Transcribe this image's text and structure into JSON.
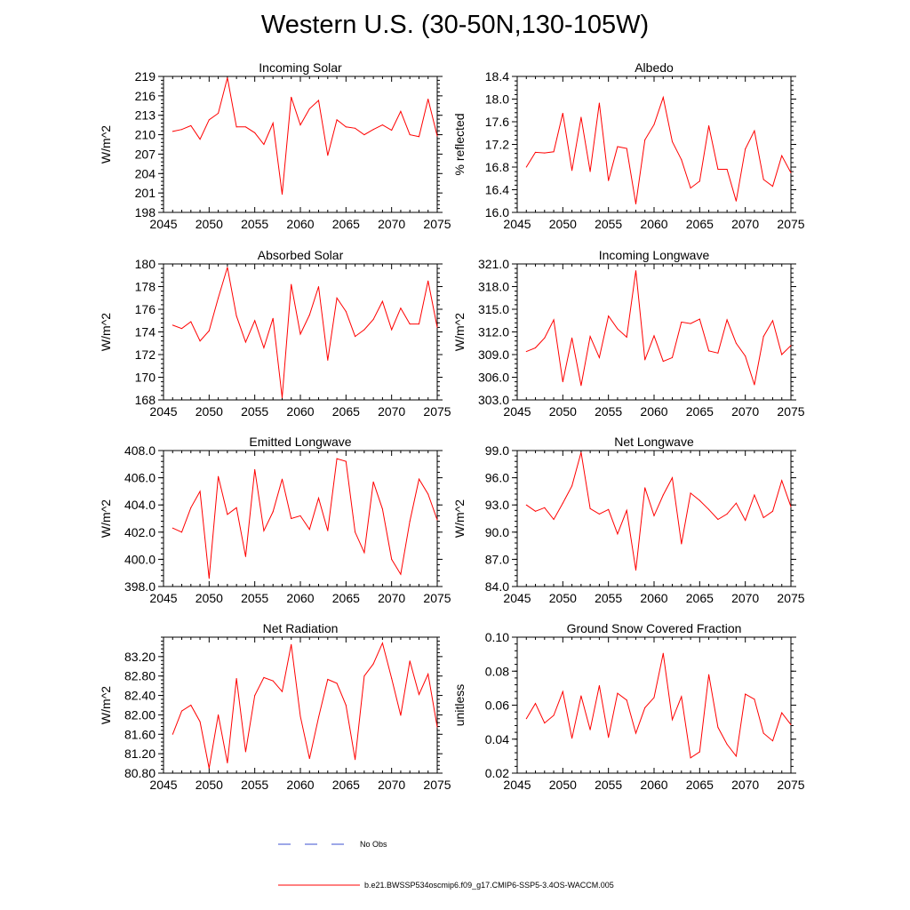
{
  "page_title": "Western U.S. (30-50N,130-105W)",
  "colors": {
    "model_line": "#ff0000",
    "obs_line": "#3b4fd1",
    "axis": "#000000"
  },
  "legend": {
    "obs_label": "No Obs",
    "model_label": "b.e21.BWSSP534oscmip6.f09_g17.CMIP6-SSP5-3.4OS-WACCM.005"
  },
  "x_tick_labels": [
    "2045",
    "2050",
    "2055",
    "2060",
    "2065",
    "2070",
    "2075"
  ],
  "chart_data": [
    {
      "type": "line",
      "title": "Incoming Solar",
      "ylabel": "W/m^2",
      "xlim": [
        2045,
        2075
      ],
      "ylim": [
        198,
        219
      ],
      "yticks": [
        198,
        201,
        204,
        207,
        210,
        213,
        216,
        219
      ],
      "ytick_labels": [
        "198",
        "201",
        "204",
        "207",
        "210",
        "213",
        "216",
        "219"
      ],
      "x": [
        2046,
        2047,
        2048,
        2049,
        2050,
        2051,
        2052,
        2053,
        2054,
        2055,
        2056,
        2057,
        2058,
        2059,
        2060,
        2061,
        2062,
        2063,
        2064,
        2065,
        2066,
        2067,
        2068,
        2069,
        2070,
        2071,
        2072,
        2073,
        2074,
        2075
      ],
      "series": [
        {
          "values": [
            210.5,
            210.8,
            211.4,
            209.3,
            212.3,
            213.3,
            218.8,
            211.2,
            211.2,
            210.3,
            208.5,
            211.8,
            200.8,
            215.8,
            211.5,
            214.0,
            215.3,
            206.8,
            212.3,
            211.2,
            211.0,
            210.0,
            210.8,
            211.5,
            210.7,
            213.6,
            210.0,
            209.7,
            215.5,
            209.8
          ]
        }
      ]
    },
    {
      "type": "line",
      "title": "Albedo",
      "ylabel": "% reflected",
      "xlim": [
        2045,
        2075
      ],
      "ylim": [
        16.0,
        18.4
      ],
      "yticks": [
        16.0,
        16.4,
        16.8,
        17.2,
        17.6,
        18.0,
        18.4
      ],
      "ytick_labels": [
        "16.0",
        "16.4",
        "16.8",
        "17.2",
        "17.6",
        "18.0",
        "18.4"
      ],
      "x": [
        2046,
        2047,
        2048,
        2049,
        2050,
        2051,
        2052,
        2053,
        2054,
        2055,
        2056,
        2057,
        2058,
        2059,
        2060,
        2061,
        2062,
        2063,
        2064,
        2065,
        2066,
        2067,
        2068,
        2069,
        2070,
        2071,
        2072,
        2073,
        2074,
        2075
      ],
      "series": [
        {
          "values": [
            16.8,
            17.06,
            17.05,
            17.07,
            17.75,
            16.74,
            17.68,
            16.72,
            17.93,
            16.56,
            17.16,
            17.13,
            16.15,
            17.28,
            17.55,
            18.03,
            17.25,
            16.93,
            16.43,
            16.55,
            17.53,
            16.76,
            16.76,
            16.2,
            17.12,
            17.44,
            16.58,
            16.46,
            17.0,
            16.7
          ]
        }
      ]
    },
    {
      "type": "line",
      "title": "Absorbed Solar",
      "ylabel": "W/m^2",
      "xlim": [
        2045,
        2075
      ],
      "ylim": [
        168,
        180
      ],
      "yticks": [
        168,
        170,
        172,
        174,
        176,
        178,
        180
      ],
      "ytick_labels": [
        "168",
        "170",
        "172",
        "174",
        "176",
        "178",
        "180"
      ],
      "x": [
        2046,
        2047,
        2048,
        2049,
        2050,
        2051,
        2052,
        2053,
        2054,
        2055,
        2056,
        2057,
        2058,
        2059,
        2060,
        2061,
        2062,
        2063,
        2064,
        2065,
        2066,
        2067,
        2068,
        2069,
        2070,
        2071,
        2072,
        2073,
        2074,
        2075
      ],
      "series": [
        {
          "values": [
            174.6,
            174.3,
            174.9,
            173.2,
            174.1,
            177.0,
            179.7,
            175.4,
            173.1,
            175.0,
            172.6,
            175.2,
            168.2,
            178.2,
            173.8,
            175.5,
            178.0,
            171.5,
            177.0,
            175.8,
            173.6,
            174.2,
            175.1,
            176.7,
            174.2,
            176.1,
            174.7,
            174.7,
            178.5,
            174.4
          ]
        }
      ]
    },
    {
      "type": "line",
      "title": "Incoming Longwave",
      "ylabel": "W/m^2",
      "xlim": [
        2045,
        2075
      ],
      "ylim": [
        303.0,
        321.0
      ],
      "yticks": [
        303.0,
        306.0,
        309.0,
        312.0,
        315.0,
        318.0,
        321.0
      ],
      "ytick_labels": [
        "303.0",
        "306.0",
        "309.0",
        "312.0",
        "315.0",
        "318.0",
        "321.0"
      ],
      "x": [
        2046,
        2047,
        2048,
        2049,
        2050,
        2051,
        2052,
        2053,
        2054,
        2055,
        2056,
        2057,
        2058,
        2059,
        2060,
        2061,
        2062,
        2063,
        2064,
        2065,
        2066,
        2067,
        2068,
        2069,
        2070,
        2071,
        2072,
        2073,
        2074,
        2075
      ],
      "series": [
        {
          "values": [
            309.4,
            309.9,
            311.2,
            313.6,
            305.4,
            311.2,
            304.9,
            311.4,
            308.6,
            314.1,
            312.4,
            311.3,
            320.1,
            308.3,
            311.5,
            308.1,
            308.6,
            313.3,
            313.1,
            313.7,
            309.5,
            309.2,
            313.6,
            310.5,
            308.8,
            305.0,
            311.4,
            313.5,
            309.0,
            310.2
          ]
        }
      ]
    },
    {
      "type": "line",
      "title": "Emitted Longwave",
      "ylabel": "W/m^2",
      "xlim": [
        2045,
        2075
      ],
      "ylim": [
        398.0,
        408.0
      ],
      "yticks": [
        398.0,
        400.0,
        402.0,
        404.0,
        406.0,
        408.0
      ],
      "ytick_labels": [
        "398.0",
        "400.0",
        "402.0",
        "404.0",
        "406.0",
        "408.0"
      ],
      "x": [
        2046,
        2047,
        2048,
        2049,
        2050,
        2051,
        2052,
        2053,
        2054,
        2055,
        2056,
        2057,
        2058,
        2059,
        2060,
        2061,
        2062,
        2063,
        2064,
        2065,
        2066,
        2067,
        2068,
        2069,
        2070,
        2071,
        2072,
        2073,
        2074,
        2075
      ],
      "series": [
        {
          "values": [
            402.3,
            402.0,
            403.8,
            405.0,
            398.6,
            406.1,
            403.3,
            403.8,
            400.2,
            406.6,
            402.1,
            403.5,
            405.9,
            403.0,
            403.2,
            402.2,
            404.5,
            402.1,
            407.4,
            407.2,
            402.0,
            400.5,
            405.7,
            403.7,
            400.0,
            398.9,
            402.8,
            405.9,
            404.8,
            402.9
          ]
        }
      ]
    },
    {
      "type": "line",
      "title": "Net Longwave",
      "ylabel": "W/m^2",
      "xlim": [
        2045,
        2075
      ],
      "ylim": [
        84.0,
        99.0
      ],
      "yticks": [
        84.0,
        87.0,
        90.0,
        93.0,
        96.0,
        99.0
      ],
      "ytick_labels": [
        "84.0",
        "87.0",
        "90.0",
        "93.0",
        "96.0",
        "99.0"
      ],
      "x": [
        2046,
        2047,
        2048,
        2049,
        2050,
        2051,
        2052,
        2053,
        2054,
        2055,
        2056,
        2057,
        2058,
        2059,
        2060,
        2061,
        2062,
        2063,
        2064,
        2065,
        2066,
        2067,
        2068,
        2069,
        2070,
        2071,
        2072,
        2073,
        2074,
        2075
      ],
      "series": [
        {
          "values": [
            93.0,
            92.3,
            92.7,
            91.4,
            93.2,
            95.1,
            98.8,
            92.6,
            92.0,
            92.5,
            89.8,
            92.4,
            85.8,
            94.9,
            91.8,
            94.1,
            96.0,
            88.7,
            94.3,
            93.5,
            92.5,
            91.4,
            92.0,
            93.2,
            91.3,
            94.1,
            91.6,
            92.3,
            95.7,
            92.8
          ]
        }
      ]
    },
    {
      "type": "line",
      "title": "Net Radiation",
      "ylabel": "W/m^2",
      "xlim": [
        2045,
        2075
      ],
      "ylim": [
        80.8,
        83.6
      ],
      "yticks": [
        80.8,
        81.2,
        81.6,
        82.0,
        82.4,
        82.8,
        83.2
      ],
      "ytick_labels": [
        "80.80",
        "81.20",
        "81.60",
        "82.00",
        "82.40",
        "82.80",
        "83.20"
      ],
      "x": [
        2046,
        2047,
        2048,
        2049,
        2050,
        2051,
        2052,
        2053,
        2054,
        2055,
        2056,
        2057,
        2058,
        2059,
        2060,
        2061,
        2062,
        2063,
        2064,
        2065,
        2066,
        2067,
        2068,
        2069,
        2070,
        2071,
        2072,
        2073,
        2074,
        2075
      ],
      "series": [
        {
          "values": [
            81.6,
            82.08,
            82.2,
            81.86,
            80.9,
            82.0,
            81.01,
            82.75,
            81.24,
            82.4,
            82.77,
            82.7,
            82.48,
            83.45,
            81.97,
            81.1,
            81.95,
            82.73,
            82.65,
            82.2,
            81.08,
            82.8,
            83.05,
            83.48,
            82.75,
            81.99,
            83.11,
            82.42,
            82.84,
            81.75
          ]
        }
      ]
    },
    {
      "type": "line",
      "title": "Ground Snow Covered Fraction",
      "ylabel": "unitless",
      "xlim": [
        2045,
        2075
      ],
      "ylim": [
        0.02,
        0.1
      ],
      "yticks": [
        0.02,
        0.04,
        0.06,
        0.08,
        0.1
      ],
      "ytick_labels": [
        "0.02",
        "0.04",
        "0.06",
        "0.08",
        "0.10"
      ],
      "x": [
        2046,
        2047,
        2048,
        2049,
        2050,
        2051,
        2052,
        2053,
        2054,
        2055,
        2056,
        2057,
        2058,
        2059,
        2060,
        2061,
        2062,
        2063,
        2064,
        2065,
        2066,
        2067,
        2068,
        2069,
        2070,
        2071,
        2072,
        2073,
        2074,
        2075
      ],
      "series": [
        {
          "values": [
            0.052,
            0.061,
            0.0495,
            0.054,
            0.068,
            0.0405,
            0.0655,
            0.0455,
            0.0715,
            0.041,
            0.067,
            0.063,
            0.0435,
            0.0585,
            0.0645,
            0.0905,
            0.0515,
            0.065,
            0.029,
            0.0325,
            0.078,
            0.047,
            0.037,
            0.03,
            0.0665,
            0.0635,
            0.0435,
            0.039,
            0.0555,
            0.0485
          ]
        }
      ]
    }
  ]
}
